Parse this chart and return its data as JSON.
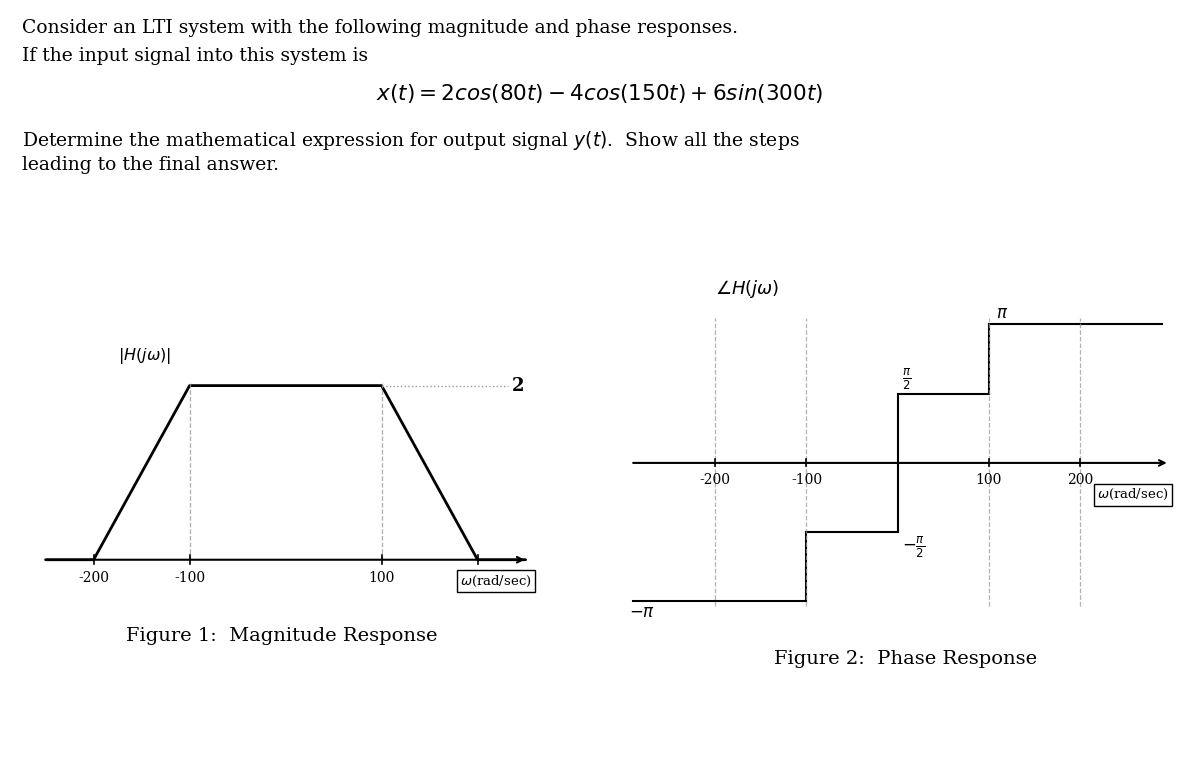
{
  "text_title_line1": "Consider an LTI system with the following magnitude and phase responses.",
  "text_title_line2": "If the input signal into this system is",
  "text_determine_line1": "Determine the mathematical expression for output signal $y(t)$.  Show all the steps",
  "text_determine_line2": "leading to the final answer.",
  "fig1_caption": "Figure 1:  Magnitude Response",
  "fig2_caption": "Figure 2:  Phase Response",
  "bg_color": "#ffffff",
  "line_color": "#000000",
  "dash_color": "#999999"
}
